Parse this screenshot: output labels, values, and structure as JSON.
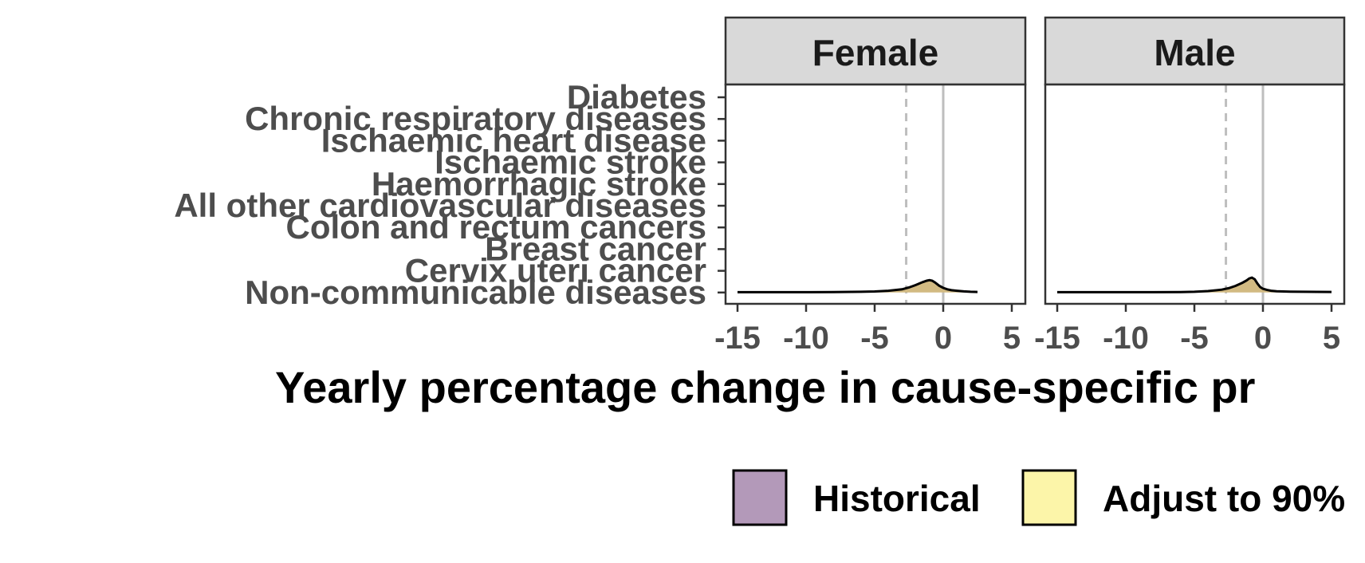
{
  "chart_data": {
    "type": "ridgeline-density",
    "xlabel": "Yearly percentage change in cause-specific pr",
    "xlim": [
      -16,
      6
    ],
    "x_ticks": [
      -15,
      -10,
      -5,
      0,
      5
    ],
    "x_tick_labels": [
      "-15",
      "-10",
      "-5",
      "0",
      "5"
    ],
    "reference_lines": [
      {
        "x": 0,
        "style": "solid",
        "color": "#bebebe"
      },
      {
        "x": -2.7,
        "style": "dashed",
        "color": "#bebebe"
      }
    ],
    "categories": [
      "Diabetes",
      "Chronic respiratory diseases",
      "Ischaemic heart disease",
      "Ischaemic stroke",
      "Haemorrhagic stroke",
      "All other cardiovascular diseases",
      "Colon and rectum cancers",
      "Breast cancer",
      "Cervix uteri cancer",
      "Non-communicable diseases"
    ],
    "panels": [
      {
        "name": "Female",
        "density_category": "Non-communicable diseases",
        "fill": "#d2ba82",
        "density": {
          "x": [
            -15,
            -12,
            -10,
            -8,
            -6,
            -5,
            -4,
            -3,
            -2.5,
            -2,
            -1.5,
            -1.2,
            -1,
            -0.8,
            -0.6,
            -0.3,
            0,
            0.3,
            0.6,
            1,
            1.5,
            2,
            2.5
          ],
          "y": [
            0.02,
            0.02,
            0.02,
            0.03,
            0.05,
            0.07,
            0.12,
            0.22,
            0.35,
            0.52,
            0.72,
            0.82,
            0.86,
            0.82,
            0.7,
            0.48,
            0.32,
            0.22,
            0.16,
            0.12,
            0.08,
            0.05,
            0.04
          ]
        }
      },
      {
        "name": "Male",
        "density_category": "Non-communicable diseases",
        "fill": "#d2ba82",
        "density": {
          "x": [
            -15,
            -12,
            -10,
            -8,
            -6,
            -5,
            -4,
            -3,
            -2.5,
            -2,
            -1.5,
            -1.2,
            -1,
            -0.8,
            -0.6,
            -0.4,
            -0.2,
            0,
            0.3,
            0.6,
            1,
            2,
            3,
            5
          ],
          "y": [
            0.02,
            0.02,
            0.02,
            0.02,
            0.03,
            0.05,
            0.1,
            0.2,
            0.3,
            0.46,
            0.68,
            0.84,
            0.98,
            1.04,
            0.92,
            0.62,
            0.38,
            0.26,
            0.18,
            0.12,
            0.09,
            0.06,
            0.05,
            0.04
          ]
        }
      }
    ],
    "legend": {
      "position": "bottom",
      "items": [
        {
          "label": "Historical",
          "color": "#b399b9"
        },
        {
          "label": "Adjust to 90%",
          "color": "#fcf5a9"
        }
      ]
    },
    "grid": false
  }
}
